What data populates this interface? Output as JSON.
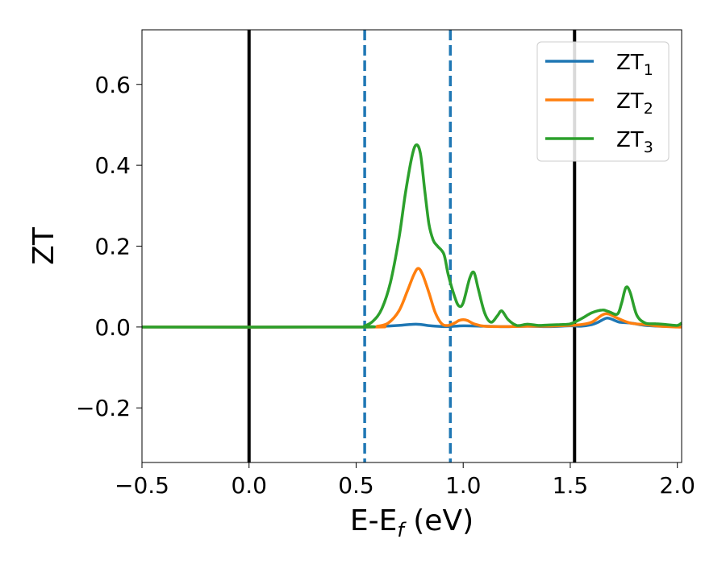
{
  "chart_data": {
    "type": "line",
    "xlabel": {
      "base": "E-E",
      "sub": "f",
      "tail": " (eV)"
    },
    "ylabel": "ZT",
    "xlim": [
      -0.5,
      2.02
    ],
    "ylim": [
      -0.335,
      0.735
    ],
    "xticks": [
      -0.5,
      0.0,
      0.5,
      1.0,
      1.5,
      2.0
    ],
    "xtick_labels": [
      "−0.5",
      "0.0",
      "0.5",
      "1.0",
      "1.5",
      "2.0"
    ],
    "yticks": [
      -0.2,
      0.0,
      0.2,
      0.4,
      0.6
    ],
    "ytick_labels": [
      "−0.2",
      "0.0",
      "0.2",
      "0.4",
      "0.6"
    ],
    "grid": false,
    "legend_position": "top-right",
    "vertical_lines": [
      {
        "x": 0.0,
        "style": "solid",
        "color": "#000000"
      },
      {
        "x": 1.52,
        "style": "solid",
        "color": "#000000"
      },
      {
        "x": 0.54,
        "style": "dashed",
        "color": "#1f77b4"
      },
      {
        "x": 0.94,
        "style": "dashed",
        "color": "#1f77b4"
      }
    ],
    "series": [
      {
        "name": "ZT",
        "sub": "1",
        "color": "#1f77b4",
        "x": [
          -0.5,
          0.5,
          0.6,
          0.7,
          0.78,
          0.85,
          0.92,
          1.0,
          1.1,
          1.2,
          1.3,
          1.4,
          1.5,
          1.55,
          1.6,
          1.63,
          1.67,
          1.7,
          1.73,
          1.78,
          1.85,
          1.92,
          2.0,
          2.02
        ],
        "y": [
          0,
          0,
          0.001,
          0.004,
          0.007,
          0.003,
          0.001,
          0.003,
          0.002,
          0.001,
          0.002,
          0.001,
          0.003,
          0.002,
          0.006,
          0.012,
          0.022,
          0.018,
          0.012,
          0.01,
          0.004,
          0.002,
          0.001,
          0.0
        ]
      },
      {
        "name": "ZT",
        "sub": "2",
        "color": "#ff7f0e",
        "x": [
          -0.5,
          0.54,
          0.6,
          0.65,
          0.7,
          0.74,
          0.77,
          0.79,
          0.81,
          0.84,
          0.87,
          0.9,
          0.93,
          0.96,
          0.98,
          1.0,
          1.02,
          1.05,
          1.1,
          1.2,
          1.3,
          1.4,
          1.5,
          1.55,
          1.6,
          1.65,
          1.68,
          1.72,
          1.78,
          1.85,
          1.92,
          2.0,
          2.02
        ],
        "y": [
          0,
          0,
          0.002,
          0.01,
          0.04,
          0.09,
          0.13,
          0.145,
          0.13,
          0.085,
          0.035,
          0.008,
          0.004,
          0.01,
          0.016,
          0.018,
          0.016,
          0.008,
          0.002,
          0.001,
          0.002,
          0.002,
          0.004,
          0.006,
          0.012,
          0.03,
          0.032,
          0.022,
          0.01,
          0.006,
          0.002,
          0.0,
          0.0
        ]
      },
      {
        "name": "ZT",
        "sub": "3",
        "color": "#2ca02c",
        "x": [
          -0.5,
          0.5,
          0.54,
          0.58,
          0.62,
          0.66,
          0.7,
          0.73,
          0.76,
          0.78,
          0.8,
          0.82,
          0.84,
          0.86,
          0.88,
          0.91,
          0.93,
          0.96,
          0.98,
          1.0,
          1.03,
          1.05,
          1.07,
          1.1,
          1.13,
          1.16,
          1.18,
          1.21,
          1.25,
          1.3,
          1.35,
          1.4,
          1.45,
          1.5,
          1.55,
          1.6,
          1.65,
          1.68,
          1.72,
          1.74,
          1.76,
          1.78,
          1.81,
          1.85,
          1.9,
          1.95,
          2.0,
          2.02
        ],
        "y": [
          0,
          0,
          0.003,
          0.015,
          0.045,
          0.11,
          0.22,
          0.33,
          0.42,
          0.45,
          0.43,
          0.34,
          0.255,
          0.215,
          0.2,
          0.18,
          0.13,
          0.075,
          0.052,
          0.06,
          0.12,
          0.135,
          0.095,
          0.035,
          0.012,
          0.028,
          0.04,
          0.018,
          0.004,
          0.007,
          0.004,
          0.005,
          0.006,
          0.008,
          0.02,
          0.035,
          0.042,
          0.038,
          0.032,
          0.06,
          0.098,
          0.085,
          0.03,
          0.01,
          0.008,
          0.006,
          0.004,
          0.01
        ]
      }
    ]
  }
}
